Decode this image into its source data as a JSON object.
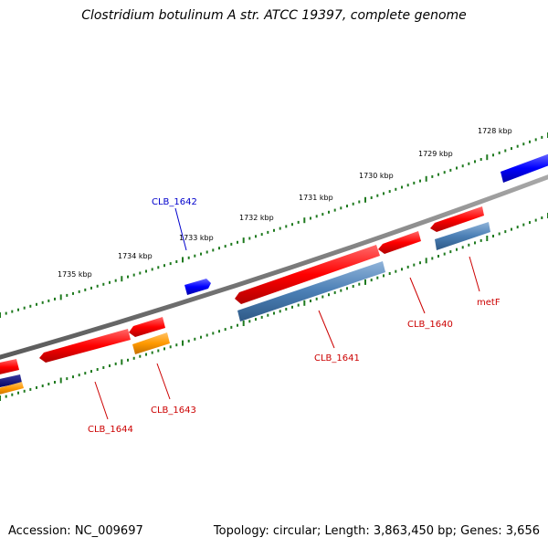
{
  "title": "Clostridium botulinum A str. ATCC 19397, complete genome",
  "footer": {
    "accession": "Accession: NC_009697",
    "stats": "Topology: circular; Length: 3,863,450 bp; Genes: 3,656"
  },
  "colors": {
    "backbone": "#808080",
    "tick": "#1f7a1f",
    "forward_gene": "#0000ff",
    "reverse_gene": "#ff0000",
    "cds_blue": "#4b7fb5",
    "rna_orange": "#ff9900",
    "navy": "#000080",
    "label_red": "#cc0000",
    "label_blue": "#0000cc"
  },
  "kbp_labels": [
    "1728 kbp",
    "1729 kbp",
    "1730 kbp",
    "1731 kbp",
    "1732 kbp",
    "1733 kbp",
    "1734 kbp",
    "1735 kbp"
  ],
  "gene_labels": [
    {
      "text": "CLB_1642",
      "color": "blue"
    },
    {
      "text": "metF",
      "color": "red"
    },
    {
      "text": "CLB_1640",
      "color": "red"
    },
    {
      "text": "CLB_1641",
      "color": "red"
    },
    {
      "text": "CLB_1643",
      "color": "red"
    },
    {
      "text": "CLB_1644",
      "color": "red"
    }
  ]
}
